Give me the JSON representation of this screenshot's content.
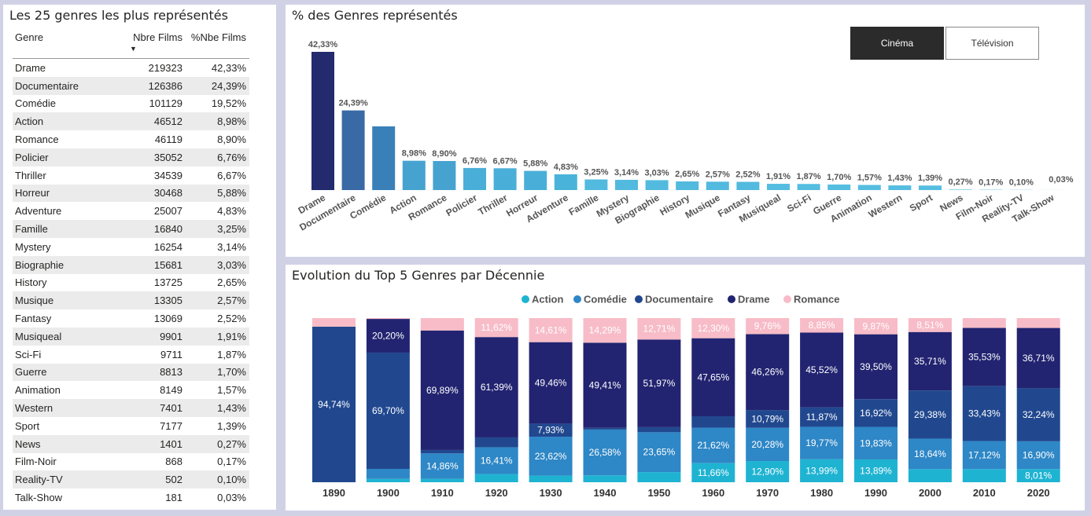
{
  "table": {
    "title": "Les 25 genres les plus représentés",
    "columns": [
      "Genre",
      "Nbre Films",
      "%Nbe Films"
    ],
    "sort_indicator": "▼",
    "rows": [
      [
        "Drame",
        "219323",
        "42,33%"
      ],
      [
        "Documentaire",
        "126386",
        "24,39%"
      ],
      [
        "Comédie",
        "101129",
        "19,52%"
      ],
      [
        "Action",
        "46512",
        "8,98%"
      ],
      [
        "Romance",
        "46119",
        "8,90%"
      ],
      [
        "Policier",
        "35052",
        "6,76%"
      ],
      [
        "Thriller",
        "34539",
        "6,67%"
      ],
      [
        "Horreur",
        "30468",
        "5,88%"
      ],
      [
        "Adventure",
        "25007",
        "4,83%"
      ],
      [
        "Famille",
        "16840",
        "3,25%"
      ],
      [
        "Mystery",
        "16254",
        "3,14%"
      ],
      [
        "Biographie",
        "15681",
        "3,03%"
      ],
      [
        "History",
        "13725",
        "2,65%"
      ],
      [
        "Musique",
        "13305",
        "2,57%"
      ],
      [
        "Fantasy",
        "13069",
        "2,52%"
      ],
      [
        "Musiqueal",
        "9901",
        "1,91%"
      ],
      [
        "Sci-Fi",
        "9711",
        "1,87%"
      ],
      [
        "Guerre",
        "8813",
        "1,70%"
      ],
      [
        "Animation",
        "8149",
        "1,57%"
      ],
      [
        "Western",
        "7401",
        "1,43%"
      ],
      [
        "Sport",
        "7177",
        "1,39%"
      ],
      [
        "News",
        "1401",
        "0,27%"
      ],
      [
        "Film-Noir",
        "868",
        "0,17%"
      ],
      [
        "Reality-TV",
        "502",
        "0,10%"
      ],
      [
        "Talk-Show",
        "181",
        "0,03%"
      ]
    ]
  },
  "buttons": {
    "cinema": "Cinéma",
    "tv": "Télévision"
  },
  "chart_data": [
    {
      "type": "bar",
      "title": "% des Genres représentés",
      "categories": [
        "Drame",
        "Documentaire",
        "Comédie",
        "Action",
        "Romance",
        "Policier",
        "Thriller",
        "Horreur",
        "Adventure",
        "Famille",
        "Mystery",
        "Biographie",
        "History",
        "Musique",
        "Fantasy",
        "Musiqueal",
        "Sci-Fi",
        "Guerre",
        "Animation",
        "Western",
        "Sport",
        "News",
        "Film-Noir",
        "Reality-TV",
        "Talk-Show"
      ],
      "values": [
        42.33,
        24.39,
        19.52,
        8.98,
        8.9,
        6.76,
        6.67,
        5.88,
        4.83,
        3.25,
        3.14,
        3.03,
        2.65,
        2.57,
        2.52,
        1.91,
        1.87,
        1.7,
        1.57,
        1.43,
        1.39,
        0.27,
        0.17,
        0.1,
        0.03
      ],
      "data_labels": [
        "42,33%",
        "24,39%",
        "",
        "8,98%",
        "8,90%",
        "6,76%",
        "6,67%",
        "5,88%",
        "4,83%",
        "3,25%",
        "3,14%",
        "3,03%",
        "2,65%",
        "2,57%",
        "2,52%",
        "1,91%",
        "1,87%",
        "1,70%",
        "1,57%",
        "1,43%",
        "1,39%",
        "0,27%",
        "0,17%",
        "0,10%",
        "0,03%"
      ],
      "colors": [
        "#232a6e",
        "#3a6aa6",
        "#3a80b8",
        "#46a3d0",
        "#46a3d0",
        "#4aafd8",
        "#4aafd8",
        "#4aafd8",
        "#4ab3da",
        "#52bade",
        "#52bade",
        "#52bade",
        "#52bade",
        "#52bade",
        "#52bade",
        "#55bde0",
        "#55bde0",
        "#55bde0",
        "#55bde0",
        "#55bde0",
        "#55bde0",
        "#9cd8ec",
        "#9cd8ec",
        "#9cd8ec",
        "#9cd8ec"
      ]
    },
    {
      "type": "bar",
      "stacked": true,
      "normalized": true,
      "title": "Evolution du Top 5 Genres par Décennie",
      "categories": [
        "1890",
        "1900",
        "1910",
        "1920",
        "1930",
        "1940",
        "1950",
        "1960",
        "1970",
        "1980",
        "1990",
        "2000",
        "2010",
        "2020"
      ],
      "legend_position": "top-center",
      "series": [
        {
          "name": "Action",
          "color": "#1fb3d2",
          "values": [
            0,
            2,
            2,
            5,
            4,
            4,
            6,
            11.66,
            12.9,
            13.99,
            13.89,
            8,
            8,
            8.01
          ],
          "labels": [
            "",
            "",
            "",
            "",
            "",
            "",
            "",
            "11,66%",
            "12,90%",
            "13,99%",
            "13,89%",
            "",
            "",
            "8,01%"
          ]
        },
        {
          "name": "Comédie",
          "color": "#2e87c6",
          "values": [
            0,
            6,
            14.86,
            16.41,
            23.62,
            26.58,
            23.65,
            21.62,
            20.28,
            19.77,
            19.83,
            18.64,
            17.12,
            16.9
          ],
          "labels": [
            "",
            "",
            "14,86%",
            "16,41%",
            "23,62%",
            "26,58%",
            "23,65%",
            "21,62%",
            "20,28%",
            "19,77%",
            "19,83%",
            "18,64%",
            "17,12%",
            "16,90%"
          ]
        },
        {
          "name": "Documentaire",
          "color": "#21488f",
          "values": [
            94.74,
            69.7,
            2,
            6,
            7.93,
            1,
            3,
            7,
            10.79,
            11.87,
            16.92,
            29.38,
            33.43,
            32.24
          ],
          "labels": [
            "94,74%",
            "69,70%",
            "",
            "",
            "7,93%",
            "",
            "",
            "",
            "10,79%",
            "11,87%",
            "16,92%",
            "29,38%",
            "33,43%",
            "32,24%"
          ]
        },
        {
          "name": "Drame",
          "color": "#222471",
          "values": [
            0,
            20.2,
            69.89,
            61.39,
            49.46,
            49.41,
            51.97,
            47.65,
            46.26,
            45.52,
            39.5,
            35.71,
            35.53,
            36.71
          ],
          "labels": [
            "",
            "20,20%",
            "69,89%",
            "61,39%",
            "49,46%",
            "49,41%",
            "51,97%",
            "47,65%",
            "46,26%",
            "45,52%",
            "39,50%",
            "35,71%",
            "35,53%",
            "36,71%"
          ]
        },
        {
          "name": "Romance",
          "color": "#f7bcc8",
          "values": [
            5.26,
            0.5,
            7.25,
            11.62,
            14.61,
            14.29,
            12.71,
            12.3,
            9.76,
            8.85,
            9.87,
            8.51,
            6,
            6
          ],
          "labels": [
            "",
            "",
            "",
            "11,62%",
            "14,61%",
            "14,29%",
            "12,71%",
            "12,30%",
            "9,76%",
            "8,85%",
            "9,87%",
            "8,51%",
            "",
            ""
          ]
        }
      ]
    }
  ]
}
